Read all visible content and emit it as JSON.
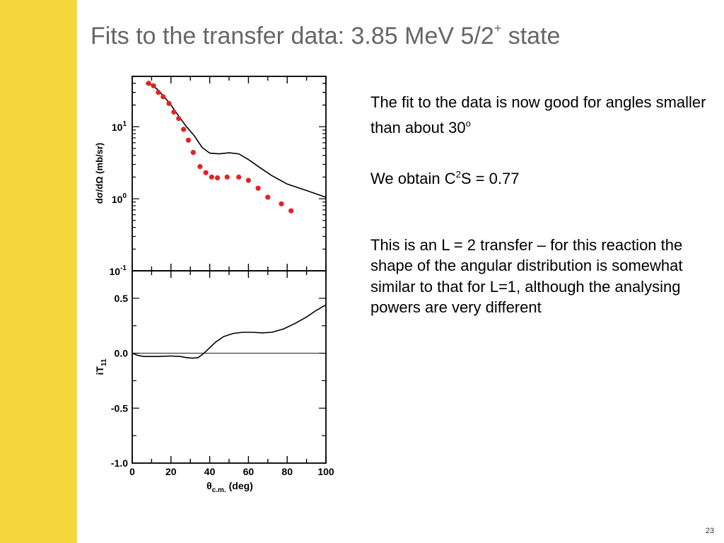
{
  "slide": {
    "title_text": "Fits to the transfer data: 3.85 MeV 5/2",
    "title_superscript": "+",
    "title_suffix": " state",
    "page_number": "23",
    "accent_color": "#f5d63d",
    "title_color": "#666666"
  },
  "body": {
    "p1_text": "The fit to the data is now good for angles smaller than about 30",
    "p1_superscript": "o",
    "p2_prefix": "We obtain C",
    "p2_superscript": "2",
    "p2_suffix": "S = 0.77",
    "p3_text": "This is an L = 2 transfer – for this reaction the shape of the angular distribution is somewhat similar to that for L=1, although the analysing powers are very different"
  },
  "chart_data": [
    {
      "type": "scatter",
      "ylabel": "dσ/dΩ (mb/sr)",
      "yscale": "log",
      "xlim": [
        0,
        100
      ],
      "ylim": [
        0.1,
        50
      ],
      "ytick_labels": [
        {
          "base": "10",
          "exp": "1",
          "value": 10
        },
        {
          "base": "10",
          "exp": "0",
          "value": 1
        },
        {
          "base": "10",
          "exp": "-1",
          "value": 0.1
        }
      ],
      "series": [
        {
          "kind": "points",
          "color": "#e82020",
          "x": [
            8.5,
            11,
            13.5,
            16,
            19,
            21.5,
            24,
            26.5,
            29,
            31.5,
            35,
            38,
            41,
            44,
            49,
            55,
            60,
            65,
            70,
            77,
            82
          ],
          "y": [
            40,
            37,
            30,
            26,
            21,
            16,
            13,
            9.2,
            6.5,
            4.4,
            2.8,
            2.3,
            2.0,
            1.95,
            2.0,
            2.0,
            1.8,
            1.4,
            1.05,
            0.85,
            0.68
          ]
        },
        {
          "kind": "line",
          "color": "#000000",
          "x": [
            7,
            10,
            13,
            16,
            20,
            24,
            28,
            32,
            36,
            40,
            45,
            50,
            55,
            60,
            66,
            72,
            80,
            90,
            100
          ],
          "y": [
            40,
            38,
            33,
            27,
            20,
            14,
            10,
            7.5,
            5.2,
            4.3,
            4.2,
            4.35,
            4.2,
            3.5,
            2.7,
            2.1,
            1.6,
            1.3,
            1.05
          ]
        }
      ]
    },
    {
      "type": "line",
      "ylabel_main": "iT",
      "ylabel_sub": "11",
      "xlabel_main": "θ",
      "xlabel_sub": "c.m.",
      "xlabel_unit": " (deg)",
      "xlim": [
        0,
        100
      ],
      "ylim": [
        -1.0,
        0.75
      ],
      "xticks": [
        0,
        20,
        40,
        60,
        80,
        100
      ],
      "xtick_labels": [
        "0",
        "20",
        "40",
        "60",
        "80",
        "100"
      ],
      "yticks": [
        0.5,
        0.0,
        -0.5,
        -1.0
      ],
      "ytick_labels": [
        "0.5",
        "0.0",
        "-0.5",
        "-1.0"
      ],
      "series": [
        {
          "kind": "line",
          "color": "#000000",
          "x": [
            0,
            3,
            6,
            10,
            14,
            20,
            25,
            28,
            31,
            34,
            37,
            40,
            43,
            47,
            52,
            57,
            62,
            67,
            72,
            78,
            84,
            90,
            95,
            100
          ],
          "y": [
            0.0,
            -0.02,
            -0.03,
            -0.03,
            -0.03,
            -0.025,
            -0.03,
            -0.04,
            -0.045,
            -0.04,
            0.0,
            0.05,
            0.1,
            0.15,
            0.18,
            0.19,
            0.19,
            0.185,
            0.19,
            0.22,
            0.27,
            0.33,
            0.39,
            0.44
          ]
        }
      ]
    }
  ]
}
